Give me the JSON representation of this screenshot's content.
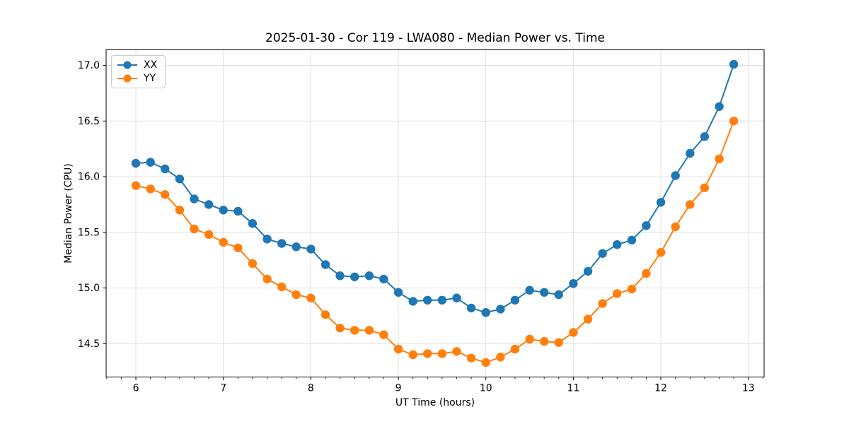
{
  "chart_data": {
    "type": "line",
    "title": "2025-01-30 - Cor 119 - LWA080 - Median Power vs. Time",
    "xlabel": "UT Time (hours)",
    "ylabel": "Median Power (CPU)",
    "xlim": [
      5.66,
      13.18
    ],
    "ylim": [
      14.2,
      17.14
    ],
    "x_ticks": [
      6,
      7,
      8,
      9,
      10,
      11,
      12,
      13
    ],
    "y_ticks": [
      14.5,
      15.0,
      15.5,
      16.0,
      16.5,
      17.0
    ],
    "x_minor_ticks_per_hour": 6,
    "grid": true,
    "legend_position": "upper left",
    "x": [
      6.0,
      6.167,
      6.333,
      6.5,
      6.667,
      6.833,
      7.0,
      7.167,
      7.333,
      7.5,
      7.667,
      7.833,
      8.0,
      8.167,
      8.333,
      8.5,
      8.667,
      8.833,
      9.0,
      9.167,
      9.333,
      9.5,
      9.667,
      9.833,
      10.0,
      10.167,
      10.333,
      10.5,
      10.667,
      10.833,
      11.0,
      11.167,
      11.333,
      11.5,
      11.667,
      11.833,
      12.0,
      12.167,
      12.333,
      12.5,
      12.667,
      12.833
    ],
    "series": [
      {
        "name": "XX",
        "color": "#1f77b4",
        "marker": "circle",
        "values": [
          16.12,
          16.13,
          16.07,
          15.98,
          15.8,
          15.75,
          15.7,
          15.69,
          15.58,
          15.44,
          15.4,
          15.37,
          15.35,
          15.21,
          15.11,
          15.1,
          15.11,
          15.08,
          14.96,
          14.88,
          14.89,
          14.89,
          14.91,
          14.82,
          14.78,
          14.81,
          14.89,
          14.98,
          14.96,
          14.94,
          15.04,
          15.15,
          15.31,
          15.39,
          15.43,
          15.56,
          15.77,
          16.01,
          16.21,
          16.36,
          16.63,
          17.01
        ]
      },
      {
        "name": "YY",
        "color": "#ff7f0e",
        "marker": "circle",
        "values": [
          15.92,
          15.89,
          15.84,
          15.7,
          15.53,
          15.48,
          15.41,
          15.36,
          15.22,
          15.08,
          15.01,
          14.94,
          14.91,
          14.76,
          14.64,
          14.62,
          14.62,
          14.58,
          14.45,
          14.4,
          14.41,
          14.41,
          14.43,
          14.37,
          14.33,
          14.38,
          14.45,
          14.54,
          14.52,
          14.51,
          14.6,
          14.72,
          14.86,
          14.95,
          14.99,
          15.13,
          15.32,
          15.55,
          15.75,
          15.9,
          16.16,
          16.5
        ]
      }
    ],
    "style": {
      "grid_color": "#e0e0e0",
      "spine_color": "#000000",
      "marker_radius": 6.2,
      "line_width": 2
    }
  }
}
